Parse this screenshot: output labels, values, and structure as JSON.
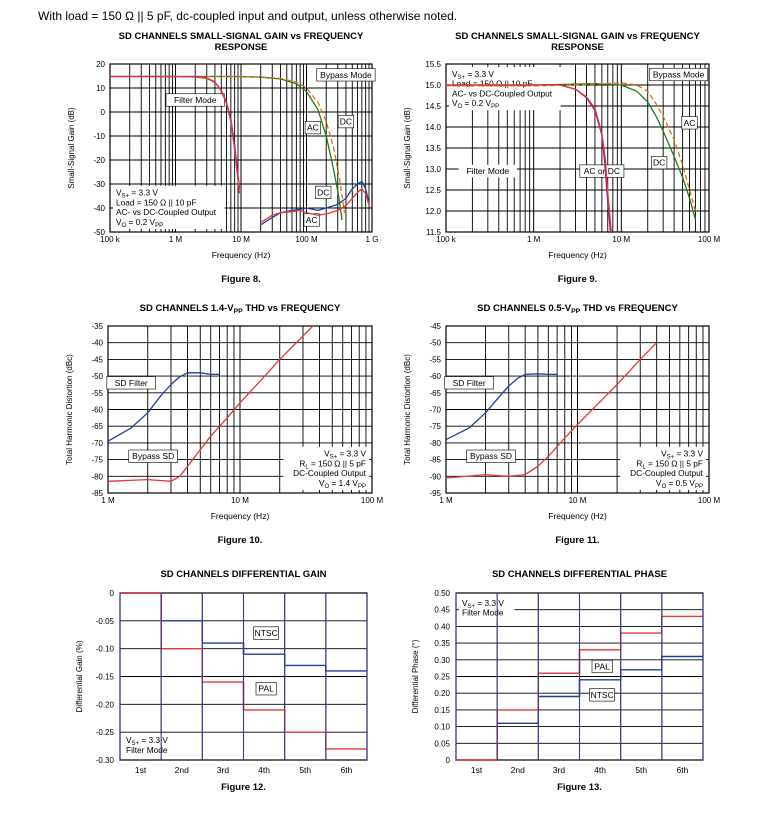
{
  "note": "With load = 150 Ω || 5 pF, dc-coupled input and output, unless otherwise noted.",
  "chart_data": [
    {
      "id": "fig8",
      "type": "line",
      "title": "SD CHANNELS SMALL-SIGNAL GAIN vs FREQUENCY RESPONSE",
      "title_lines": [
        "SD CHANNELS SMALL-SIGNAL GAIN vs FREQUENCY",
        "RESPONSE"
      ],
      "caption": "Figure 8.",
      "xlabel": "Frequency (Hz)",
      "ylabel": "Small-Signal Gain (dB)",
      "xscale": "log",
      "xlim": [
        100000,
        1000000000
      ],
      "ylim": [
        -50,
        20
      ],
      "xticks": [
        100000,
        1000000,
        10000000,
        100000000,
        1000000000
      ],
      "xtick_labels": [
        "100 k",
        "1 M",
        "10 M",
        "100 M",
        "1 G"
      ],
      "yticks": [
        -50,
        -40,
        -30,
        -20,
        -10,
        0,
        10,
        20
      ],
      "ytick_labels": [
        "-50",
        "-40",
        "-30",
        "-20",
        "-10",
        "0",
        "10",
        "20"
      ],
      "grid": true,
      "series": [
        {
          "color": "#1e7d1e",
          "dash": "",
          "x": [
            100000,
            1000000,
            8000000,
            20000000,
            40000000,
            70000000,
            100000000,
            150000000,
            200000000,
            250000000,
            300000000,
            350000000
          ],
          "y": [
            14.8,
            14.8,
            14.8,
            14.5,
            13.8,
            11.8,
            8.5,
            1,
            -10,
            -22,
            -33,
            -45
          ]
        },
        {
          "color": "#e07000",
          "dash": "5,3",
          "x": [
            100000,
            1000000,
            8000000,
            20000000,
            40000000,
            70000000,
            100000000,
            150000000,
            200000000,
            260000000,
            320000000,
            380000000
          ],
          "y": [
            14.8,
            14.8,
            14.8,
            14.6,
            14,
            12.5,
            10,
            4,
            -4,
            -15,
            -28,
            -42
          ]
        },
        {
          "color": "#7b1fa2",
          "dash": "",
          "x": [
            100000,
            1000000,
            2000000,
            3000000,
            4000000,
            5000000,
            6000000,
            7000000,
            8000000,
            9500000
          ],
          "y": [
            14.8,
            14.8,
            14.7,
            14.2,
            12.5,
            9,
            4,
            -3,
            -14,
            -32
          ]
        },
        {
          "color": "#e53935",
          "dash": "",
          "x": [
            100000,
            1000000,
            2000000,
            3000000,
            4000000,
            5000000,
            6000000,
            7000000,
            8000000,
            9500000
          ],
          "y": [
            14.8,
            14.8,
            14.6,
            14,
            12.3,
            8.8,
            3.5,
            -4,
            -16,
            -34
          ]
        },
        {
          "color": "#1f3fa0",
          "dash": "",
          "x": [
            20000000,
            30000000,
            40000000,
            60000000,
            80000000,
            100000000,
            150000000,
            200000000,
            300000000,
            400000000,
            500000000,
            600000000,
            700000000,
            800000000,
            900000000
          ],
          "y": [
            -47,
            -44,
            -42,
            -41,
            -40.5,
            -40,
            -41,
            -40,
            -38.5,
            -36,
            -32,
            -30,
            -29,
            -32,
            -38
          ]
        },
        {
          "color": "#e53935",
          "dash": "",
          "x": [
            20000000,
            30000000,
            40000000,
            60000000,
            80000000,
            100000000,
            150000000,
            200000000,
            300000000,
            400000000,
            500000000,
            600000000,
            700000000,
            800000000,
            900000000
          ],
          "y": [
            -46,
            -43,
            -42,
            -41.5,
            -41,
            -42,
            -43,
            -42.5,
            -41,
            -39,
            -36,
            -33.5,
            -32,
            -34,
            -39
          ]
        }
      ],
      "annotations": [
        {
          "text": "Bypass Mode",
          "x": 400000000,
          "y": 15.5,
          "box": true
        },
        {
          "text": "Filter Mode",
          "x": 2000000,
          "y": 5,
          "box": true
        },
        {
          "text": "AC",
          "x": 125000000,
          "y": -6.5,
          "box": true
        },
        {
          "text": "DC",
          "x": 400000000,
          "y": -4,
          "box": true
        },
        {
          "text": "DC",
          "x": 180000000,
          "y": -33.5,
          "box": true
        },
        {
          "text": "AC",
          "x": 120000000,
          "y": -45,
          "box": true
        }
      ],
      "conditions": [
        "V_S+ = 3.3 V",
        "Load = 150 Ω || 10 pF",
        "AC- vs DC-Coupled Output",
        "V_O = 0.2 V_PP"
      ],
      "conditions_pos": "bottom-left"
    },
    {
      "id": "fig9",
      "type": "line",
      "title": "SD CHANNELS SMALL-SIGNAL GAIN vs FREQUENCY RESPONSE",
      "title_lines": [
        "SD CHANNELS SMALL-SIGNAL GAIN vs FREQUENCY",
        "RESPONSE"
      ],
      "caption": "Figure 9.",
      "xlabel": "Frequency (Hz)",
      "ylabel": "Small-Signal Gain (dB)",
      "xscale": "log",
      "xlim": [
        100000,
        100000000
      ],
      "ylim": [
        11.5,
        15.5
      ],
      "xticks": [
        100000,
        1000000,
        10000000,
        100000000
      ],
      "xtick_labels": [
        "100 k",
        "1 M",
        "10 M",
        "100 M"
      ],
      "yticks": [
        11.5,
        12,
        12.5,
        13,
        13.5,
        14,
        14.5,
        15,
        15.5
      ],
      "ytick_labels": [
        "11.5",
        "12.0",
        "12.5",
        "13.0",
        "13.5",
        "14.0",
        "14.5",
        "15.0",
        "15.5"
      ],
      "grid": true,
      "series": [
        {
          "color": "#1e7d1e",
          "dash": "",
          "x": [
            100000,
            1000000,
            3000000,
            5000000,
            10000000,
            15000000,
            20000000,
            25000000,
            30000000,
            40000000,
            50000000,
            60000000,
            70000000
          ],
          "y": [
            15,
            15,
            15.02,
            15.03,
            15,
            14.85,
            14.6,
            14.25,
            13.9,
            13.3,
            12.8,
            12.3,
            11.8
          ]
        },
        {
          "color": "#e07000",
          "dash": "5,3",
          "x": [
            100000,
            1000000,
            3000000,
            5000000,
            10000000,
            15000000,
            20000000,
            25000000,
            30000000,
            40000000,
            50000000,
            60000000,
            70000000
          ],
          "y": [
            14.98,
            14.98,
            15,
            15.02,
            15.05,
            15,
            14.85,
            14.55,
            14.25,
            13.7,
            13.1,
            12.5,
            12
          ]
        },
        {
          "color": "#7b1fa2",
          "dash": "",
          "x": [
            100000,
            2000000,
            3000000,
            4000000,
            5000000,
            6000000,
            6500000,
            7000000,
            7500000
          ],
          "y": [
            15,
            15,
            14.9,
            14.7,
            14.4,
            13.8,
            13.1,
            12.2,
            11.5
          ]
        },
        {
          "color": "#e53935",
          "dash": "",
          "x": [
            100000,
            2000000,
            3000000,
            4000000,
            5000000,
            6000000,
            6600000,
            7100000,
            7700000
          ],
          "y": [
            15,
            15,
            14.9,
            14.72,
            14.45,
            13.85,
            13.2,
            12.3,
            11.5
          ]
        }
      ],
      "annotations": [
        {
          "text": "Bypass Mode",
          "x": 45000000,
          "y": 15.25,
          "box": true
        },
        {
          "text": "AC",
          "x": 60000000,
          "y": 14.1,
          "box": true
        },
        {
          "text": "DC",
          "x": 27000000,
          "y": 13.15,
          "box": true
        },
        {
          "text": "Filter Mode",
          "x": 300000,
          "y": 12.95,
          "box": false
        },
        {
          "text": "AC or DC",
          "x": 6000000,
          "y": 12.95,
          "box": true
        }
      ],
      "conditions": [
        "V_S+ = 3.3 V",
        "Load = 150 Ω || 10 pF",
        "AC- vs DC-Coupled Output",
        "V_O = 0.2 V_PP"
      ],
      "conditions_pos": "top-left"
    },
    {
      "id": "fig10",
      "type": "line",
      "title": "SD CHANNELS 1.4-V_PP THD vs FREQUENCY",
      "title_lines": [
        "SD CHANNELS 1.4-V_PP THD vs FREQUENCY"
      ],
      "caption": "Figure 10.",
      "xlabel": "Frequency (Hz)",
      "ylabel": "Total Harmonic Distortion (dBc)",
      "xscale": "log",
      "xlim": [
        1000000,
        100000000
      ],
      "ylim": [
        -85,
        -35
      ],
      "xticks": [
        1000000,
        10000000,
        100000000
      ],
      "xtick_labels": [
        "1 M",
        "10 M",
        "100 M"
      ],
      "yticks": [
        -85,
        -80,
        -75,
        -70,
        -65,
        -60,
        -55,
        -50,
        -45,
        -40,
        -35
      ],
      "ytick_labels": [
        "-85",
        "-80",
        "-75",
        "-70",
        "-65",
        "-60",
        "-55",
        "-50",
        "-45",
        "-40",
        "-35"
      ],
      "grid": true,
      "series": [
        {
          "color": "#1f3fa0",
          "dash": "",
          "x": [
            1000000,
            1500000,
            2000000,
            2500000,
            3000000,
            3500000,
            4000000,
            5000000,
            6000000,
            7000000
          ],
          "y": [
            -69.5,
            -65.5,
            -61,
            -56,
            -52.5,
            -50.2,
            -49,
            -49,
            -49.5,
            -49.5
          ]
        },
        {
          "color": "#e53935",
          "dash": "",
          "x": [
            1000000,
            2000000,
            3000000,
            3500000,
            4000000,
            5000000,
            6000000,
            8000000,
            10000000,
            15000000,
            20000000,
            30000000,
            40000000,
            50000000
          ],
          "y": [
            -81.5,
            -81,
            -81.5,
            -80,
            -77,
            -72,
            -68,
            -62.5,
            -58,
            -50.5,
            -45,
            -38,
            -33,
            -28
          ]
        }
      ],
      "annotations": [
        {
          "text": "SD Filter",
          "x": 1500000,
          "y": -52,
          "box": true
        },
        {
          "text": "Bypass SD",
          "x": 2200000,
          "y": -74,
          "box": true
        }
      ],
      "conditions": [
        "V_S+ = 3.3 V",
        "R_L = 150 Ω || 5 pF",
        "DC-Coupled Output",
        "V_O = 1.4 V_PP"
      ],
      "conditions_pos": "bottom-right"
    },
    {
      "id": "fig11",
      "type": "line",
      "title": "SD CHANNELS 0.5-V_PP THD vs FREQUENCY",
      "title_lines": [
        "SD CHANNELS 0.5-V_PP THD vs FREQUENCY"
      ],
      "caption": "Figure 11.",
      "xlabel": "Frequency (Hz)",
      "ylabel": "Total Harmonic Distortion (dBc)",
      "xscale": "log",
      "xlim": [
        1000000,
        100000000
      ],
      "ylim": [
        -95,
        -45
      ],
      "xticks": [
        1000000,
        10000000,
        100000000
      ],
      "xtick_labels": [
        "1 M",
        "10 M",
        "100 M"
      ],
      "yticks": [
        -95,
        -90,
        -85,
        -80,
        -75,
        -70,
        -65,
        -60,
        -55,
        -50,
        -45
      ],
      "ytick_labels": [
        "-95",
        "-90",
        "-85",
        "-80",
        "-75",
        "-70",
        "-65",
        "-60",
        "-55",
        "-50",
        "-45"
      ],
      "grid": true,
      "series": [
        {
          "color": "#1f3fa0",
          "dash": "",
          "x": [
            1000000,
            1500000,
            2000000,
            2500000,
            3000000,
            3500000,
            4000000,
            5000000,
            6000000,
            7000000
          ],
          "y": [
            -79,
            -75.5,
            -71,
            -66.5,
            -63,
            -60.7,
            -59.5,
            -59.3,
            -59.5,
            -59.5
          ]
        },
        {
          "color": "#e53935",
          "dash": "",
          "x": [
            1000000,
            2000000,
            3000000,
            4000000,
            5000000,
            6000000,
            8000000,
            10000000,
            15000000,
            20000000,
            30000000,
            40000000
          ],
          "y": [
            -90.5,
            -89.5,
            -90,
            -89.5,
            -87,
            -84,
            -78.5,
            -74.5,
            -67.5,
            -62.5,
            -55,
            -50
          ]
        }
      ],
      "annotations": [
        {
          "text": "SD Filter",
          "x": 1500000,
          "y": -62,
          "box": true
        },
        {
          "text": "Bypass SD",
          "x": 2200000,
          "y": -84,
          "box": true
        }
      ],
      "conditions": [
        "V_S+ = 3.3 V",
        "R_L = 150 Ω || 5 pF",
        "DC-Coupled Output",
        "V_O = 0.5 V_PP"
      ],
      "conditions_pos": "bottom-right"
    },
    {
      "id": "fig12",
      "type": "step",
      "title": "SD CHANNELS DIFFERENTIAL GAIN",
      "title_lines": [
        "SD CHANNELS DIFFERENTIAL GAIN"
      ],
      "caption": "Figure 12.",
      "xlabel": "",
      "ylabel": "Differential Gain (%)",
      "categories": [
        "1st",
        "2nd",
        "3rd",
        "4th",
        "5th",
        "6th"
      ],
      "ylim": [
        -0.3,
        0
      ],
      "yticks": [
        -0.3,
        -0.25,
        -0.2,
        -0.15,
        -0.1,
        -0.05,
        0
      ],
      "ytick_labels": [
        "-0.30",
        "-0.25",
        "-0.20",
        "-0.15",
        "-0.10",
        "-0.05",
        "0"
      ],
      "series": [
        {
          "color": "#1f3fa0",
          "values": [
            0,
            -0.05,
            -0.09,
            -0.11,
            -0.13,
            -0.14
          ]
        },
        {
          "color": "#e53935",
          "values": [
            0,
            -0.1,
            -0.16,
            -0.21,
            -0.25,
            -0.28
          ]
        }
      ],
      "annotations": [
        {
          "text": "NTSC",
          "x": 3.55,
          "y": -0.072,
          "box": true
        },
        {
          "text": "PAL",
          "x": 3.55,
          "y": -0.172,
          "box": true
        }
      ],
      "conditions": [
        "V_S+ = 3.3 V",
        "Filter Mode"
      ],
      "conditions_pos": "bottom-left"
    },
    {
      "id": "fig13",
      "type": "step",
      "title": "SD CHANNELS DIFFERENTIAL PHASE",
      "title_lines": [
        "SD CHANNELS DIFFERENTIAL PHASE"
      ],
      "caption": "Figure 13.",
      "xlabel": "",
      "ylabel": "Differential Phase (°)",
      "categories": [
        "1st",
        "2nd",
        "3rd",
        "4th",
        "5th",
        "6th"
      ],
      "ylim": [
        0,
        0.5
      ],
      "yticks": [
        0,
        0.05,
        0.1,
        0.15,
        0.2,
        0.25,
        0.3,
        0.35,
        0.4,
        0.45,
        0.5
      ],
      "ytick_labels": [
        "0",
        "0.05",
        "0.10",
        "0.15",
        "0.20",
        "0.25",
        "0.30",
        "0.35",
        "0.40",
        "0.45",
        "0.50"
      ],
      "series": [
        {
          "color": "#1f3fa0",
          "values": [
            0,
            0.11,
            0.19,
            0.24,
            0.27,
            0.31
          ]
        },
        {
          "color": "#e53935",
          "values": [
            0,
            0.15,
            0.26,
            0.33,
            0.38,
            0.43
          ]
        }
      ],
      "annotations": [
        {
          "text": "PAL",
          "x": 3.55,
          "y": 0.28,
          "box": true
        },
        {
          "text": "NTSC",
          "x": 3.55,
          "y": 0.195,
          "box": true
        }
      ],
      "conditions": [
        "V_S+ = 3.3 V",
        "Filter Mode"
      ],
      "conditions_pos": "top-left"
    }
  ]
}
